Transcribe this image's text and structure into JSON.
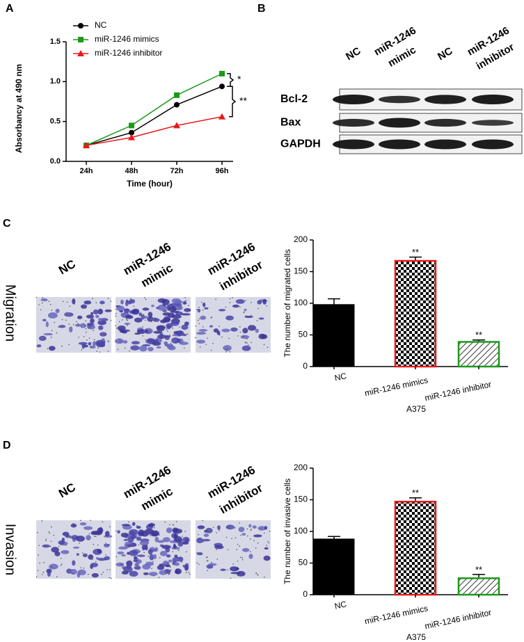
{
  "panel_labels": [
    "A",
    "B",
    "C",
    "D"
  ],
  "chart_data": [
    {
      "type": "line",
      "ylabel": "Absorbancy at 490 nm",
      "xlabel": "Time (hour)",
      "categories": [
        "24h",
        "48h",
        "72h",
        "96h"
      ],
      "series": [
        {
          "name": "NC",
          "color": "#000000",
          "marker": "circle",
          "values": [
            0.2,
            0.36,
            0.71,
            0.94
          ]
        },
        {
          "name": "miR-1246 mimics",
          "color": "#1a9a1a",
          "marker": "square",
          "values": [
            0.2,
            0.45,
            0.83,
            1.1
          ]
        },
        {
          "name": "miR-1246 inhibitor",
          "color": "#e8191a",
          "marker": "triangle",
          "values": [
            0.2,
            0.3,
            0.45,
            0.56
          ]
        }
      ],
      "ylim": [
        0,
        1.5
      ],
      "yticks": [
        {
          "value": 0,
          "label": "0.0"
        },
        {
          "value": 0.5,
          "label": "0.5"
        },
        {
          "value": 1,
          "label": "1.0"
        },
        {
          "value": 1.5,
          "label": "1.5"
        }
      ],
      "annotations": [
        "*",
        "**"
      ],
      "legend": "upper left"
    },
    {
      "type": "bar",
      "ylabel": "The number of migrated cells",
      "xlabel": "A375",
      "categories": [
        "NC",
        "miR-1246 mimics",
        "miR-1246 inhibitor"
      ],
      "values": [
        98,
        167,
        39
      ],
      "errors": [
        9,
        6,
        3
      ],
      "significance": [
        null,
        "**",
        "**"
      ],
      "colors": [
        "#000000",
        "#e8191a",
        "#1a9a1a"
      ],
      "fills": [
        "solid",
        "checker",
        "hatch"
      ],
      "ylim": [
        0,
        200
      ],
      "yticks": [
        0,
        50,
        100,
        150,
        200
      ]
    },
    {
      "type": "bar",
      "ylabel": "The number of invasive cells",
      "xlabel": "A375",
      "categories": [
        "NC",
        "miR-1246 mimics",
        "miR-1246 inhibitor"
      ],
      "values": [
        88,
        147,
        26
      ],
      "errors": [
        4,
        6,
        6
      ],
      "significance": [
        null,
        "**",
        "**"
      ],
      "colors": [
        "#000000",
        "#e8191a",
        "#1a9a1a"
      ],
      "fills": [
        "solid",
        "checker",
        "hatch"
      ],
      "ylim": [
        0,
        200
      ],
      "yticks": [
        0,
        50,
        100,
        150,
        200
      ]
    }
  ],
  "blot": {
    "lanes": [
      [
        "NC"
      ],
      [
        "miR-1246",
        "mimic"
      ],
      [
        "NC"
      ],
      [
        "miR-1246",
        "inhibitor"
      ]
    ],
    "proteins": [
      "Bcl-2",
      "Bax",
      "GAPDH"
    ]
  },
  "migration": {
    "row_label": "Migration",
    "groups": [
      [
        "NC"
      ],
      [
        "miR-1246",
        "mimic"
      ],
      [
        "miR-1246",
        "inhibitor"
      ]
    ]
  },
  "invasion": {
    "row_label": "Invasion",
    "groups": [
      [
        "NC"
      ],
      [
        "miR-1246",
        "mimic"
      ],
      [
        "miR-1246",
        "inhibitor"
      ]
    ]
  }
}
